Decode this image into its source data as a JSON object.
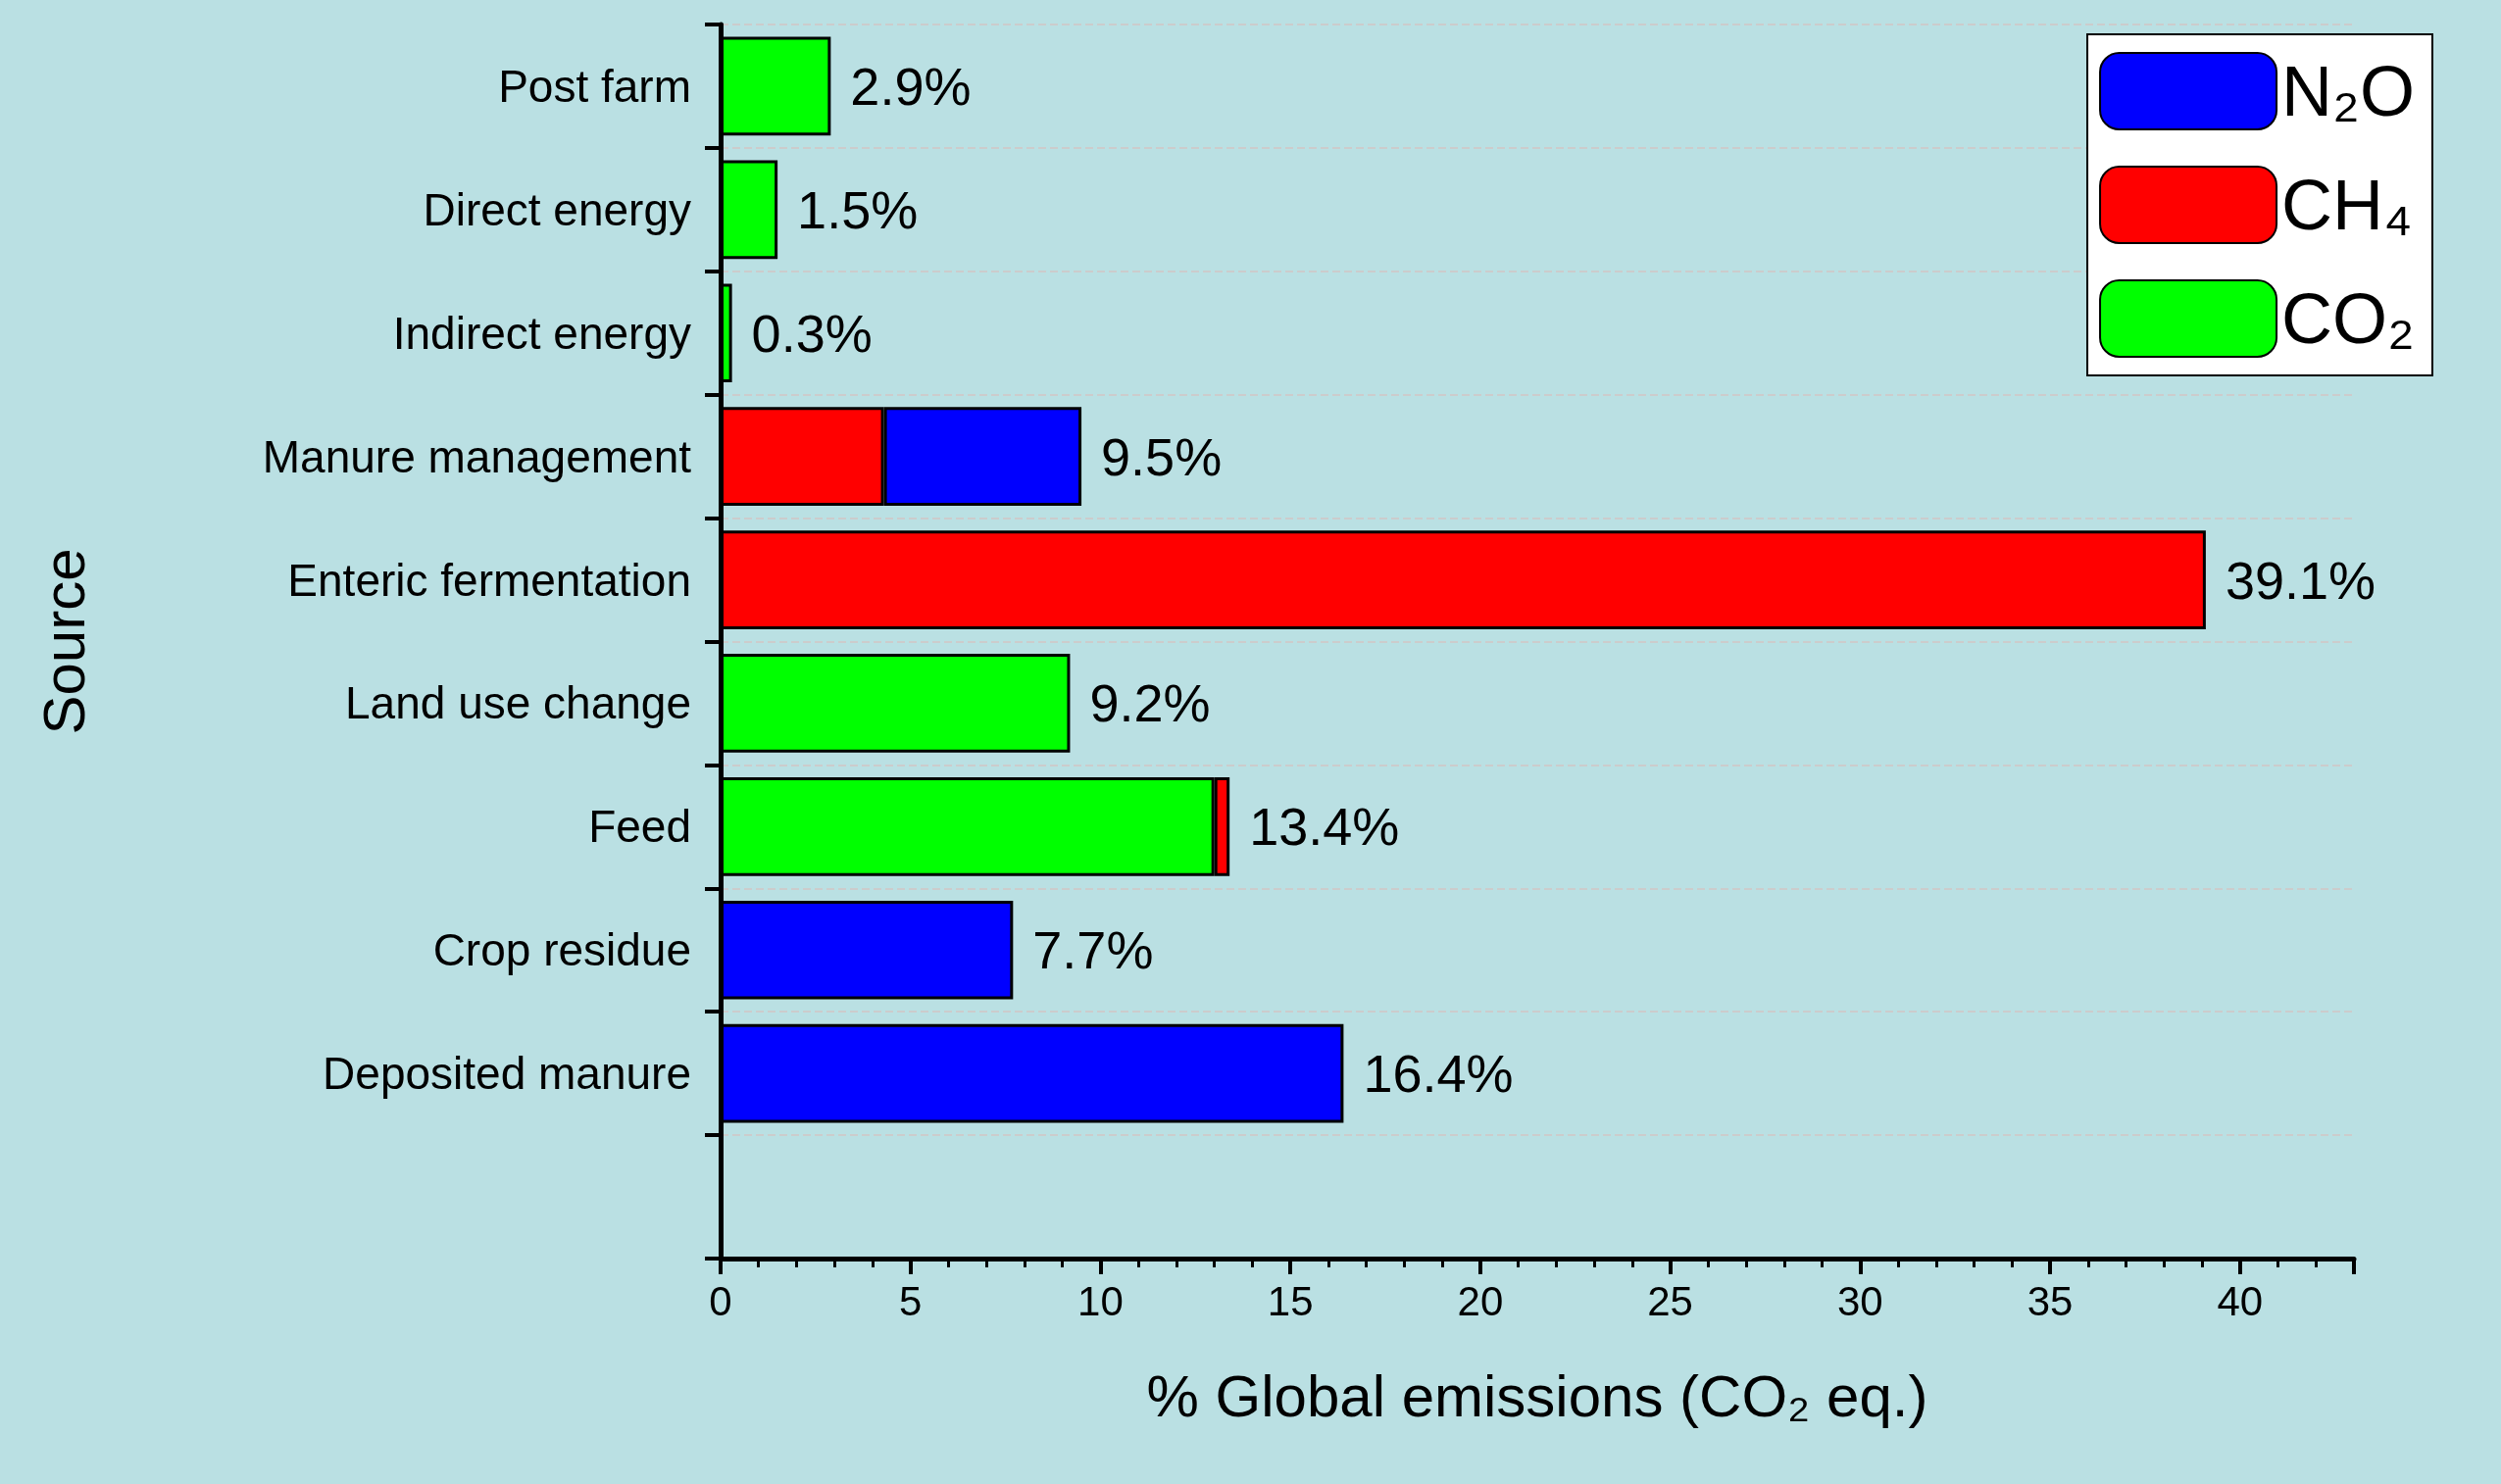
{
  "chart_data": {
    "type": "bar",
    "orientation": "horizontal",
    "stacked": true,
    "xlabel": "% Global emissions (CO₂ eq.)",
    "ylabel": "Source",
    "categories": [
      "Post farm",
      "Direct energy",
      "Indirect energy",
      "Manure management",
      "Enteric fermentation",
      "Land use change",
      "Feed",
      "Crop residue",
      "Deposited manure",
      null
    ],
    "series": [
      {
        "name": "CO₂",
        "color": "#00ff00",
        "values": [
          2.9,
          1.5,
          0.3,
          null,
          null,
          9.2,
          13.0,
          null,
          null,
          null
        ]
      },
      {
        "name": "CH₄",
        "color": "#ff0000",
        "values": [
          null,
          null,
          null,
          4.3,
          39.1,
          null,
          0.4,
          null,
          null,
          null
        ]
      },
      {
        "name": "N₂O",
        "color": "#0000ff",
        "values": [
          null,
          null,
          null,
          5.2,
          null,
          null,
          null,
          7.7,
          16.4,
          null
        ]
      }
    ],
    "totals": [
      "2.9%",
      "1.5%",
      "0.3%",
      "9.5%",
      "39.1%",
      "9.2%",
      "13.4%",
      "7.7%",
      "16.4%",
      null
    ],
    "xlim": [
      0,
      43
    ],
    "xticks": [
      0,
      5,
      10,
      15,
      20,
      25,
      30,
      35,
      40
    ],
    "grid": "y",
    "legend": "top right"
  }
}
